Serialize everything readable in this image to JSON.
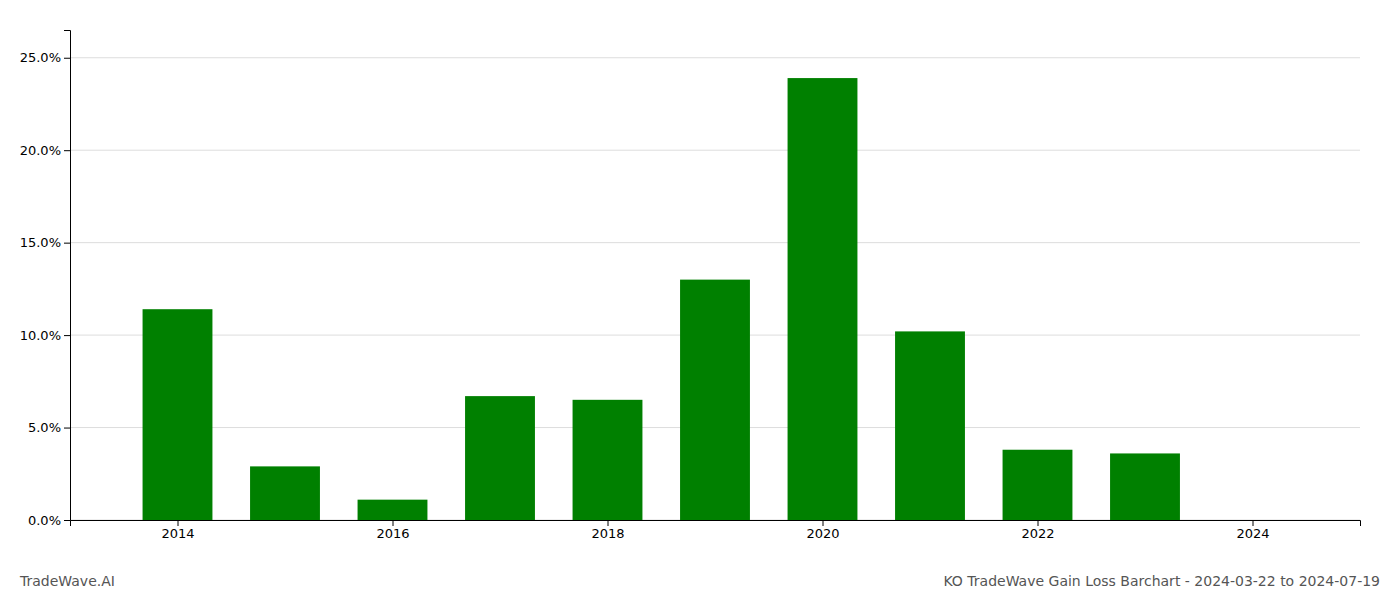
{
  "chart_data": {
    "type": "bar",
    "title": "KO TradeWave Gain Loss Barchart - 2024-03-22 to 2024-07-19",
    "annotations": [
      "TradeWave.AI"
    ],
    "x": [
      2014,
      2015,
      2016,
      2017,
      2018,
      2019,
      2020,
      2021,
      2022,
      2023
    ],
    "values": [
      0.114,
      0.029,
      0.011,
      0.067,
      0.065,
      0.13,
      0.239,
      0.102,
      0.038,
      0.036
    ],
    "color": "#008000",
    "xlim": [
      2013.0,
      2025.0
    ],
    "xticks": [
      2014,
      2016,
      2018,
      2020,
      2022,
      2024
    ],
    "ylim": [
      0.0,
      0.265
    ],
    "yticks": [
      {
        "value": 0.0,
        "label": "0.0%"
      },
      {
        "value": 0.05,
        "label": "5.0%"
      },
      {
        "value": 0.1,
        "label": "10.0%"
      },
      {
        "value": 0.15,
        "label": "15.0%"
      },
      {
        "value": 0.2,
        "label": "20.0%"
      },
      {
        "value": 0.25,
        "label": "25.0%"
      }
    ],
    "grid": true
  }
}
